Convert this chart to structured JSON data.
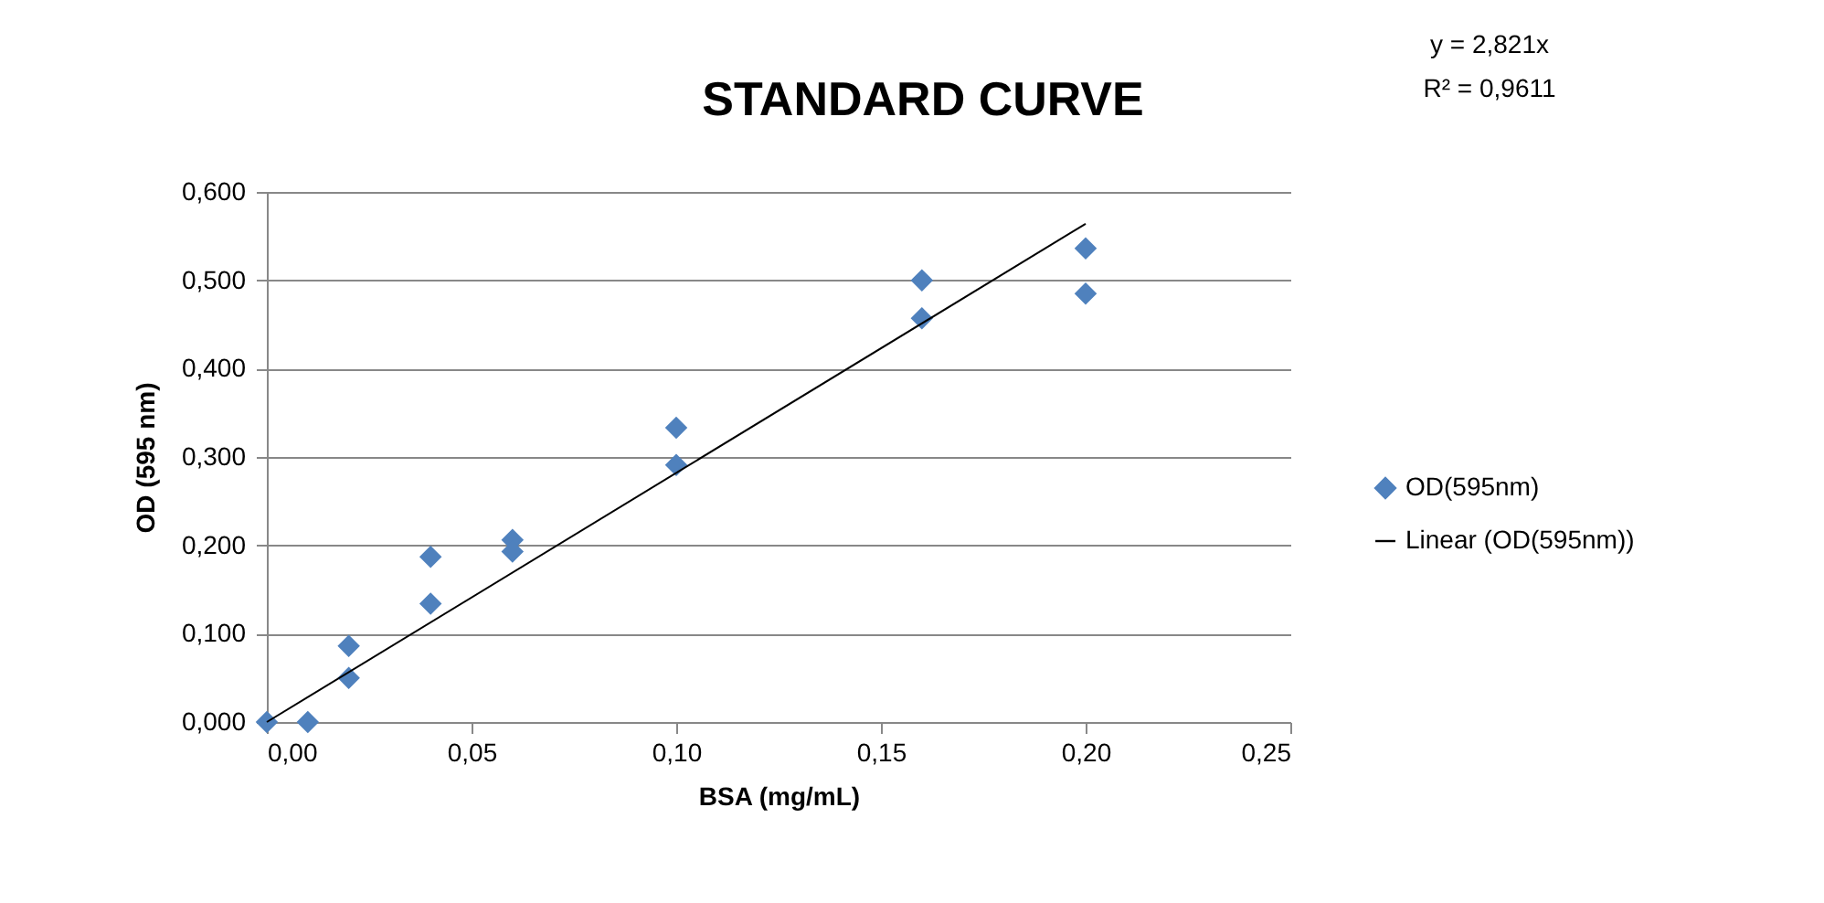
{
  "chart_data": {
    "type": "scatter",
    "title": "STANDARD CURVE",
    "xlabel": "BSA (mg/mL)",
    "ylabel": "OD (595 nm)",
    "x": [
      0,
      0.01,
      0.02,
      0.02,
      0.04,
      0.04,
      0.06,
      0.06,
      0.1,
      0.1,
      0.16,
      0.16,
      0.2,
      0.2
    ],
    "series": [
      {
        "name": "OD(595nm)",
        "type": "scatter",
        "color": "#4f81bd",
        "marker": "diamond",
        "values": [
          0,
          0,
          0.086,
          0.05,
          0.187,
          0.134,
          0.206,
          0.193,
          0.333,
          0.291,
          0.5,
          0.457,
          0.536,
          0.485
        ]
      },
      {
        "name": "Linear (OD(595nm))",
        "type": "line",
        "color": "#000000",
        "line_style": "solid",
        "x": [
          0,
          0.2
        ],
        "values": [
          0,
          0.564
        ]
      }
    ],
    "xlim": [
      0,
      0.25
    ],
    "xticks": [
      {
        "value": 0,
        "label": "0,00"
      },
      {
        "value": 0.05,
        "label": "0,05"
      },
      {
        "value": 0.1,
        "label": "0,10"
      },
      {
        "value": 0.15,
        "label": "0,15"
      },
      {
        "value": 0.2,
        "label": "0,20"
      },
      {
        "value": 0.25,
        "label": "0,25"
      }
    ],
    "ylim": [
      0,
      0.6
    ],
    "yticks": [
      {
        "value": 0,
        "label": "0,000"
      },
      {
        "value": 0.1,
        "label": "0,100"
      },
      {
        "value": 0.2,
        "label": "0,200"
      },
      {
        "value": 0.3,
        "label": "0,300"
      },
      {
        "value": 0.4,
        "label": "0,400"
      },
      {
        "value": 0.5,
        "label": "0,500"
      },
      {
        "value": 0.6,
        "label": "0,600"
      }
    ],
    "grid": "y",
    "legend": "right",
    "annotations": [
      "y = 2,821x",
      "R² = 0,9611"
    ]
  }
}
